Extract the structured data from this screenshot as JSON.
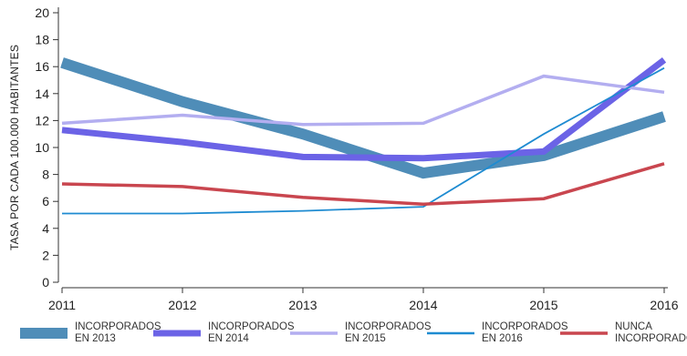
{
  "chart_data": {
    "type": "line",
    "title": "",
    "xlabel": "",
    "ylabel": "TASA POR CADA 100.000 HABITANTES",
    "x": [
      "2011",
      "2012",
      "2013",
      "2014",
      "2015",
      "2016"
    ],
    "ylim": [
      0,
      20
    ],
    "yticks": [
      "0",
      "2",
      "4",
      "6",
      "8",
      "10",
      "12",
      "14",
      "16",
      "18",
      "20"
    ],
    "grid": false,
    "legend_position": "bottom",
    "series": [
      {
        "name_lines": [
          "INCORPORADOS",
          "EN 2013"
        ],
        "color": "#4f8db8",
        "width": "thick",
        "values": [
          16.3,
          13.4,
          11.0,
          8.1,
          9.4,
          12.3
        ]
      },
      {
        "name_lines": [
          "INCORPORADOS",
          "EN 2014"
        ],
        "color": "#6b63e6",
        "width": "medium",
        "values": [
          11.3,
          10.4,
          9.3,
          9.2,
          9.7,
          16.5
        ]
      },
      {
        "name_lines": [
          "INCORPORADOS",
          "EN 2015"
        ],
        "color": "#b3aef0",
        "width": "normal",
        "values": [
          11.8,
          12.4,
          11.7,
          11.8,
          15.3,
          14.1
        ]
      },
      {
        "name_lines": [
          "INCORPORADOS",
          "EN 2016"
        ],
        "color": "#1e8bd1",
        "width": "thin",
        "values": [
          5.1,
          5.1,
          5.3,
          5.6,
          11.0,
          15.9
        ]
      },
      {
        "name_lines": [
          "NUNCA",
          "INCORPORADOS"
        ],
        "color": "#c9464f",
        "width": "normal",
        "values": [
          7.3,
          7.1,
          6.3,
          5.8,
          6.2,
          8.8
        ]
      }
    ]
  }
}
